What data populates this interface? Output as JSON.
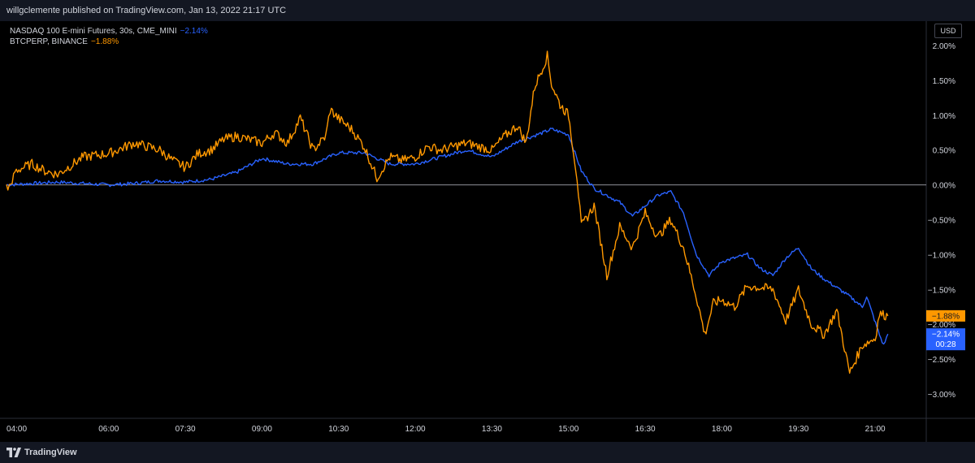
{
  "header": {
    "publish_line": "willgclemente published on TradingView.com, Jan 13, 2022 21:17 UTC"
  },
  "legend": {
    "nq_label": "NASDAQ 100 E-mini Futures, 30s, CME_MINI",
    "nq_change": "−2.14%",
    "btc_label": "BTCPERP, BINANCE",
    "btc_change": "−1.88%"
  },
  "currency_button": "USD",
  "footer": {
    "brand": "TradingView"
  },
  "colors": {
    "nq": "#2962ff",
    "btc": "#ff9800",
    "background": "#000000",
    "zero_line": "#b2b5be"
  },
  "price_tags": {
    "btc": "−1.88%",
    "nq": "−2.14%",
    "countdown": "00:28"
  },
  "chart_data": {
    "type": "line",
    "y_axis": {
      "unit": "%",
      "range": [
        -3.35,
        2.35
      ],
      "ticks": [
        {
          "value": 2.0,
          "label": "2.00%"
        },
        {
          "value": 1.5,
          "label": "1.50%"
        },
        {
          "value": 1.0,
          "label": "1.00%"
        },
        {
          "value": 0.5,
          "label": "0.50%"
        },
        {
          "value": 0.0,
          "label": "0.00%"
        },
        {
          "value": -0.5,
          "label": "−0.50%"
        },
        {
          "value": -1.0,
          "label": "−1.00%"
        },
        {
          "value": -1.5,
          "label": "−1.50%"
        },
        {
          "value": -2.0,
          "label": "−2.00%"
        },
        {
          "value": -2.5,
          "label": "−2.50%"
        },
        {
          "value": -3.0,
          "label": "−3.00%"
        }
      ]
    },
    "x_axis": {
      "range": [
        "04:00",
        "22:00"
      ],
      "ticks": [
        {
          "value": "04:00",
          "label": "04:00"
        },
        {
          "value": "06:00",
          "label": "06:00"
        },
        {
          "value": "07:30",
          "label": "07:30"
        },
        {
          "value": "09:00",
          "label": "09:00"
        },
        {
          "value": "10:30",
          "label": "10:30"
        },
        {
          "value": "12:00",
          "label": "12:00"
        },
        {
          "value": "13:30",
          "label": "13:30"
        },
        {
          "value": "15:00",
          "label": "15:00"
        },
        {
          "value": "16:30",
          "label": "16:30"
        },
        {
          "value": "18:00",
          "label": "18:00"
        },
        {
          "value": "19:30",
          "label": "19:30"
        },
        {
          "value": "21:00",
          "label": "21:00"
        }
      ]
    },
    "series": [
      {
        "name": "NASDAQ 100 E-mini Futures, 30s, CME_MINI",
        "color": "#2962ff",
        "points": [
          [
            "04:00",
            0.0
          ],
          [
            "04:30",
            0.02
          ],
          [
            "05:00",
            0.04
          ],
          [
            "05:30",
            0.02
          ],
          [
            "06:00",
            0.0
          ],
          [
            "06:30",
            0.02
          ],
          [
            "07:00",
            0.06
          ],
          [
            "07:30",
            0.04
          ],
          [
            "08:00",
            0.08
          ],
          [
            "08:30",
            0.18
          ],
          [
            "09:00",
            0.38
          ],
          [
            "09:30",
            0.3
          ],
          [
            "10:00",
            0.3
          ],
          [
            "10:30",
            0.46
          ],
          [
            "11:00",
            0.46
          ],
          [
            "11:30",
            0.3
          ],
          [
            "12:00",
            0.3
          ],
          [
            "12:30",
            0.4
          ],
          [
            "13:00",
            0.5
          ],
          [
            "13:30",
            0.4
          ],
          [
            "14:00",
            0.62
          ],
          [
            "14:30",
            0.75
          ],
          [
            "14:40",
            0.8
          ],
          [
            "15:00",
            0.72
          ],
          [
            "15:15",
            0.2
          ],
          [
            "15:30",
            -0.05
          ],
          [
            "16:00",
            -0.25
          ],
          [
            "16:15",
            -0.45
          ],
          [
            "16:30",
            -0.3
          ],
          [
            "16:45",
            -0.15
          ],
          [
            "17:00",
            -0.1
          ],
          [
            "17:15",
            -0.4
          ],
          [
            "17:30",
            -1.0
          ],
          [
            "17:45",
            -1.3
          ],
          [
            "18:00",
            -1.1
          ],
          [
            "18:30",
            -1.0
          ],
          [
            "18:45",
            -1.2
          ],
          [
            "19:00",
            -1.3
          ],
          [
            "19:15",
            -1.05
          ],
          [
            "19:30",
            -0.9
          ],
          [
            "19:45",
            -1.2
          ],
          [
            "20:00",
            -1.35
          ],
          [
            "20:30",
            -1.6
          ],
          [
            "20:45",
            -1.75
          ],
          [
            "20:50",
            -1.6
          ],
          [
            "21:05",
            -2.15
          ],
          [
            "21:10",
            -2.3
          ],
          [
            "21:15",
            -2.14
          ]
        ]
      },
      {
        "name": "BTCPERP, BINANCE",
        "color": "#ff9800",
        "points": [
          [
            "04:00",
            0.0
          ],
          [
            "04:05",
            -0.05
          ],
          [
            "04:10",
            0.2
          ],
          [
            "04:30",
            0.3
          ],
          [
            "04:45",
            0.2
          ],
          [
            "05:00",
            0.15
          ],
          [
            "05:30",
            0.4
          ],
          [
            "06:00",
            0.45
          ],
          [
            "06:30",
            0.6
          ],
          [
            "07:00",
            0.5
          ],
          [
            "07:15",
            0.35
          ],
          [
            "07:30",
            0.25
          ],
          [
            "07:45",
            0.45
          ],
          [
            "08:00",
            0.5
          ],
          [
            "08:15",
            0.65
          ],
          [
            "08:30",
            0.7
          ],
          [
            "09:00",
            0.6
          ],
          [
            "09:15",
            0.75
          ],
          [
            "09:30",
            0.6
          ],
          [
            "09:45",
            0.96
          ],
          [
            "10:00",
            0.5
          ],
          [
            "10:15",
            0.7
          ],
          [
            "10:20",
            1.08
          ],
          [
            "10:30",
            0.95
          ],
          [
            "10:45",
            0.8
          ],
          [
            "11:00",
            0.55
          ],
          [
            "11:15",
            0.1
          ],
          [
            "11:30",
            0.4
          ],
          [
            "11:45",
            0.35
          ],
          [
            "12:00",
            0.4
          ],
          [
            "12:15",
            0.55
          ],
          [
            "12:30",
            0.5
          ],
          [
            "13:00",
            0.6
          ],
          [
            "13:15",
            0.55
          ],
          [
            "13:30",
            0.5
          ],
          [
            "13:45",
            0.7
          ],
          [
            "14:00",
            0.85
          ],
          [
            "14:10",
            0.6
          ],
          [
            "14:20",
            1.4
          ],
          [
            "14:30",
            1.7
          ],
          [
            "14:35",
            1.85
          ],
          [
            "14:40",
            1.45
          ],
          [
            "14:50",
            1.15
          ],
          [
            "15:00",
            1.0
          ],
          [
            "15:10",
            0.1
          ],
          [
            "15:15",
            -0.6
          ],
          [
            "15:30",
            -0.3
          ],
          [
            "15:45",
            -1.3
          ],
          [
            "16:00",
            -0.6
          ],
          [
            "16:15",
            -0.9
          ],
          [
            "16:30",
            -0.4
          ],
          [
            "16:45",
            -0.75
          ],
          [
            "17:00",
            -0.5
          ],
          [
            "17:15",
            -0.9
          ],
          [
            "17:30",
            -1.6
          ],
          [
            "17:40",
            -2.15
          ],
          [
            "17:50",
            -1.7
          ],
          [
            "18:00",
            -1.65
          ],
          [
            "18:15",
            -1.75
          ],
          [
            "18:30",
            -1.45
          ],
          [
            "19:00",
            -1.5
          ],
          [
            "19:15",
            -1.95
          ],
          [
            "19:30",
            -1.5
          ],
          [
            "19:45",
            -2.0
          ],
          [
            "20:00",
            -2.15
          ],
          [
            "20:15",
            -1.8
          ],
          [
            "20:30",
            -2.7
          ],
          [
            "20:45",
            -2.3
          ],
          [
            "21:00",
            -2.2
          ],
          [
            "21:05",
            -1.85
          ],
          [
            "21:15",
            -1.88
          ]
        ]
      }
    ],
    "zero_line": true,
    "grid": false
  }
}
